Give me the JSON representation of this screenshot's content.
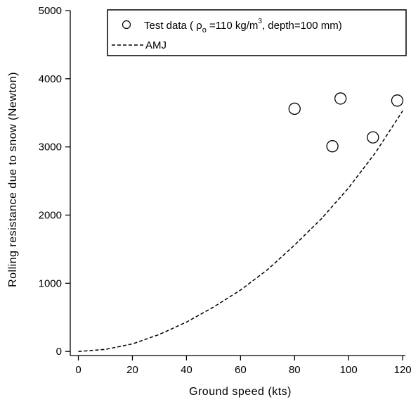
{
  "chart_data": {
    "type": "scatter",
    "xlabel": "Ground speed (kts)",
    "ylabel": "Rolling resistance due to snow (Newton)",
    "xlim": [
      -3,
      121
    ],
    "ylim": [
      -60,
      5000
    ],
    "x_ticks": [
      0,
      20,
      40,
      60,
      80,
      100,
      120
    ],
    "y_ticks": [
      0,
      1000,
      2000,
      3000,
      4000,
      5000
    ],
    "grid": false,
    "legend_position": "top-right",
    "series": [
      {
        "name": "Test data ( ρo =110 kg/m3, depth=100 mm)",
        "legend": {
          "pre": "Test data ( ",
          "rho": "ρ",
          "rho_sub": "o",
          "mid": " =110 kg/m",
          "sup": "3",
          "post": ", depth=100 mm)"
        },
        "marker": "open-circle",
        "points": [
          {
            "x": 80,
            "y": 3560
          },
          {
            "x": 94,
            "y": 3010
          },
          {
            "x": 97,
            "y": 3710
          },
          {
            "x": 109,
            "y": 3140
          },
          {
            "x": 118,
            "y": 3680
          }
        ]
      },
      {
        "name": "AMJ",
        "style": "dashed-line",
        "points": [
          {
            "x": 0,
            "y": 0
          },
          {
            "x": 10,
            "y": 30
          },
          {
            "x": 20,
            "y": 110
          },
          {
            "x": 30,
            "y": 250
          },
          {
            "x": 40,
            "y": 430
          },
          {
            "x": 50,
            "y": 650
          },
          {
            "x": 60,
            "y": 900
          },
          {
            "x": 70,
            "y": 1200
          },
          {
            "x": 80,
            "y": 1560
          },
          {
            "x": 90,
            "y": 1950
          },
          {
            "x": 100,
            "y": 2400
          },
          {
            "x": 110,
            "y": 2920
          },
          {
            "x": 120,
            "y": 3530
          }
        ]
      }
    ]
  }
}
